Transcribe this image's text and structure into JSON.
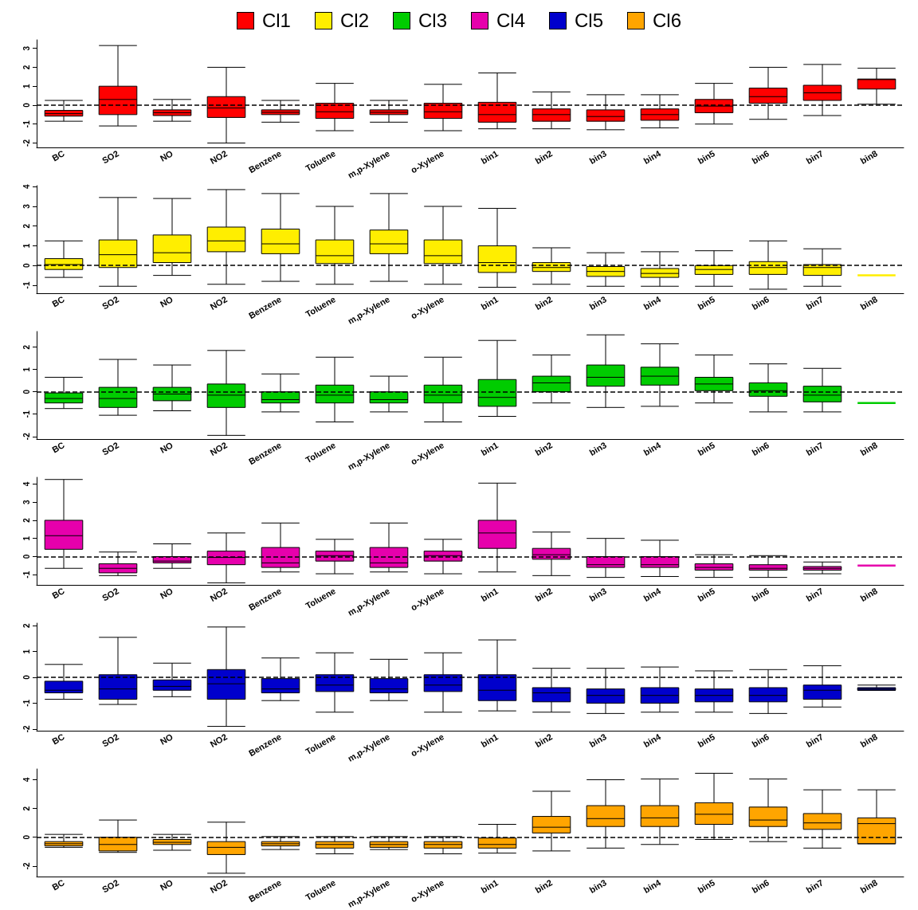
{
  "chart_data": [
    {
      "type": "box",
      "categories": [
        "BC",
        "SO2",
        "NO",
        "NO2",
        "Benzene",
        "Toluene",
        "m,p-Xylene",
        "o-Xylene",
        "bin1",
        "bin2",
        "bin3",
        "bin4",
        "bin5",
        "bin6",
        "bin7",
        "bin8"
      ],
      "ylim": [
        -2.25,
        3.45
      ],
      "yticks": [
        -2,
        -1,
        0,
        1,
        2,
        3
      ],
      "grid": false,
      "legend": "top",
      "ref_lines": [
        {
          "axis": "y",
          "value": 0,
          "line_style": "dashed"
        }
      ],
      "series": [
        {
          "name": "Cl1",
          "color": "#ff0000",
          "boxes": [
            {
              "low": -0.85,
              "q1": -0.58,
              "median": -0.45,
              "q3": -0.28,
              "high": 0.25
            },
            {
              "low": -1.1,
              "q1": -0.5,
              "median": 0.3,
              "q3": 1.0,
              "high": 3.15
            },
            {
              "low": -0.85,
              "q1": -0.55,
              "median": -0.4,
              "q3": -0.25,
              "high": 0.3
            },
            {
              "low": -2.0,
              "q1": -0.65,
              "median": -0.15,
              "q3": 0.45,
              "high": 2.0
            },
            {
              "low": -0.9,
              "q1": -0.5,
              "median": -0.38,
              "q3": -0.25,
              "high": 0.25
            },
            {
              "low": -1.35,
              "q1": -0.7,
              "median": -0.35,
              "q3": 0.1,
              "high": 1.15
            },
            {
              "low": -0.9,
              "q1": -0.5,
              "median": -0.38,
              "q3": -0.25,
              "high": 0.25
            },
            {
              "low": -1.35,
              "q1": -0.7,
              "median": -0.35,
              "q3": 0.1,
              "high": 1.1
            },
            {
              "low": -1.25,
              "q1": -0.9,
              "median": -0.5,
              "q3": 0.15,
              "high": 1.7
            },
            {
              "low": -1.25,
              "q1": -0.85,
              "median": -0.5,
              "q3": -0.2,
              "high": 0.7
            },
            {
              "low": -1.3,
              "q1": -0.85,
              "median": -0.6,
              "q3": -0.25,
              "high": 0.55
            },
            {
              "low": -1.2,
              "q1": -0.8,
              "median": -0.5,
              "q3": -0.2,
              "high": 0.55
            },
            {
              "low": -1.0,
              "q1": -0.4,
              "median": -0.05,
              "q3": 0.3,
              "high": 1.15
            },
            {
              "low": -0.75,
              "q1": 0.1,
              "median": 0.45,
              "q3": 0.9,
              "high": 2.0
            },
            {
              "low": -0.55,
              "q1": 0.25,
              "median": 0.65,
              "q3": 1.05,
              "high": 2.15
            },
            {
              "low": 0.05,
              "q1": 0.85,
              "median": 1.35,
              "q3": 1.38,
              "high": 1.95
            }
          ]
        }
      ]
    },
    {
      "type": "box",
      "categories": [
        "BC",
        "SO2",
        "NO",
        "NO2",
        "Benzene",
        "Toluene",
        "m,p-Xylene",
        "o-Xylene",
        "bin1",
        "bin2",
        "bin3",
        "bin4",
        "bin5",
        "bin6",
        "bin7",
        "bin8"
      ],
      "ylim": [
        -1.42,
        4.05
      ],
      "yticks": [
        -1,
        0,
        1,
        2,
        3,
        4
      ],
      "grid": false,
      "legend": "top",
      "ref_lines": [
        {
          "axis": "y",
          "value": 0,
          "line_style": "dashed"
        }
      ],
      "series": [
        {
          "name": "Cl2",
          "color": "#ffee00",
          "boxes": [
            {
              "low": -0.6,
              "q1": -0.2,
              "median": 0.05,
              "q3": 0.35,
              "high": 1.25
            },
            {
              "low": -1.05,
              "q1": -0.1,
              "median": 0.55,
              "q3": 1.3,
              "high": 3.45
            },
            {
              "low": -0.5,
              "q1": 0.15,
              "median": 0.65,
              "q3": 1.55,
              "high": 3.4
            },
            {
              "low": -0.95,
              "q1": 0.7,
              "median": 1.25,
              "q3": 1.95,
              "high": 3.85
            },
            {
              "low": -0.8,
              "q1": 0.6,
              "median": 1.1,
              "q3": 1.85,
              "high": 3.65
            },
            {
              "low": -0.95,
              "q1": 0.1,
              "median": 0.5,
              "q3": 1.3,
              "high": 3.0
            },
            {
              "low": -0.8,
              "q1": 0.6,
              "median": 1.1,
              "q3": 1.8,
              "high": 3.65
            },
            {
              "low": -0.95,
              "q1": 0.1,
              "median": 0.5,
              "q3": 1.3,
              "high": 3.0
            },
            {
              "low": -1.1,
              "q1": -0.35,
              "median": 0.15,
              "q3": 1.0,
              "high": 2.9
            },
            {
              "low": -0.95,
              "q1": -0.3,
              "median": -0.1,
              "q3": 0.15,
              "high": 0.9
            },
            {
              "low": -1.05,
              "q1": -0.55,
              "median": -0.3,
              "q3": -0.05,
              "high": 0.65
            },
            {
              "low": -1.05,
              "q1": -0.6,
              "median": -0.4,
              "q3": -0.15,
              "high": 0.7
            },
            {
              "low": -1.05,
              "q1": -0.45,
              "median": -0.2,
              "q3": 0.0,
              "high": 0.75
            },
            {
              "low": -1.2,
              "q1": -0.45,
              "median": -0.1,
              "q3": 0.2,
              "high": 1.25
            },
            {
              "low": -1.05,
              "q1": -0.5,
              "median": -0.1,
              "q3": 0.05,
              "high": 0.85
            },
            {
              "low": -0.5,
              "q1": -0.5,
              "median": -0.5,
              "q3": -0.5,
              "high": -0.5
            }
          ]
        }
      ]
    },
    {
      "type": "box",
      "categories": [
        "BC",
        "SO2",
        "NO",
        "NO2",
        "Benzene",
        "Toluene",
        "m,p-Xylene",
        "o-Xylene",
        "bin1",
        "bin2",
        "bin3",
        "bin4",
        "bin5",
        "bin6",
        "bin7",
        "bin8"
      ],
      "ylim": [
        -2.13,
        2.7
      ],
      "yticks": [
        -2,
        -1,
        0,
        1,
        2
      ],
      "grid": false,
      "legend": "top",
      "ref_lines": [
        {
          "axis": "y",
          "value": 0,
          "line_style": "dashed"
        }
      ],
      "series": [
        {
          "name": "Cl3",
          "color": "#00cc00",
          "boxes": [
            {
              "low": -0.75,
              "q1": -0.5,
              "median": -0.3,
              "q3": -0.05,
              "high": 0.65
            },
            {
              "low": -1.05,
              "q1": -0.7,
              "median": -0.3,
              "q3": 0.2,
              "high": 1.45
            },
            {
              "low": -0.85,
              "q1": -0.4,
              "median": -0.1,
              "q3": 0.2,
              "high": 1.2
            },
            {
              "low": -1.95,
              "q1": -0.7,
              "median": -0.15,
              "q3": 0.35,
              "high": 1.85
            },
            {
              "low": -0.9,
              "q1": -0.5,
              "median": -0.35,
              "q3": 0.0,
              "high": 0.8
            },
            {
              "low": -1.35,
              "q1": -0.5,
              "median": -0.15,
              "q3": 0.3,
              "high": 1.55
            },
            {
              "low": -0.9,
              "q1": -0.5,
              "median": -0.35,
              "q3": 0.0,
              "high": 0.7
            },
            {
              "low": -1.35,
              "q1": -0.5,
              "median": -0.15,
              "q3": 0.3,
              "high": 1.55
            },
            {
              "low": -1.1,
              "q1": -0.65,
              "median": -0.25,
              "q3": 0.55,
              "high": 2.3
            },
            {
              "low": -0.5,
              "q1": 0.0,
              "median": 0.4,
              "q3": 0.7,
              "high": 1.65
            },
            {
              "low": -0.7,
              "q1": 0.25,
              "median": 0.65,
              "q3": 1.2,
              "high": 2.55
            },
            {
              "low": -0.65,
              "q1": 0.3,
              "median": 0.7,
              "q3": 1.1,
              "high": 2.15
            },
            {
              "low": -0.5,
              "q1": 0.05,
              "median": 0.35,
              "q3": 0.65,
              "high": 1.65
            },
            {
              "low": -0.9,
              "q1": -0.2,
              "median": 0.05,
              "q3": 0.4,
              "high": 1.25
            },
            {
              "low": -0.9,
              "q1": -0.45,
              "median": -0.15,
              "q3": 0.25,
              "high": 1.05
            },
            {
              "low": -0.5,
              "q1": -0.5,
              "median": -0.5,
              "q3": -0.5,
              "high": -0.5
            }
          ]
        }
      ]
    },
    {
      "type": "box",
      "categories": [
        "BC",
        "SO2",
        "NO",
        "NO2",
        "Benzene",
        "Toluene",
        "m,p-Xylene",
        "o-Xylene",
        "bin1",
        "bin2",
        "bin3",
        "bin4",
        "bin5",
        "bin6",
        "bin7",
        "bin8"
      ],
      "ylim": [
        -1.58,
        4.37
      ],
      "yticks": [
        -1,
        0,
        1,
        2,
        3,
        4
      ],
      "grid": false,
      "legend": "top",
      "ref_lines": [
        {
          "axis": "y",
          "value": 0,
          "line_style": "dashed"
        }
      ],
      "series": [
        {
          "name": "Cl4",
          "color": "#e600ac",
          "boxes": [
            {
              "low": -0.65,
              "q1": 0.4,
              "median": 1.15,
              "q3": 2.0,
              "high": 4.25
            },
            {
              "low": -1.05,
              "q1": -0.9,
              "median": -0.65,
              "q3": -0.4,
              "high": 0.25
            },
            {
              "low": -0.65,
              "q1": -0.35,
              "median": -0.25,
              "q3": 0.0,
              "high": 0.7
            },
            {
              "low": -1.45,
              "q1": -0.45,
              "median": -0.05,
              "q3": 0.3,
              "high": 1.3
            },
            {
              "low": -0.85,
              "q1": -0.6,
              "median": -0.35,
              "q3": 0.5,
              "high": 1.85
            },
            {
              "low": -0.95,
              "q1": -0.25,
              "median": 0.05,
              "q3": 0.3,
              "high": 0.95
            },
            {
              "low": -0.85,
              "q1": -0.6,
              "median": -0.35,
              "q3": 0.5,
              "high": 1.85
            },
            {
              "low": -0.95,
              "q1": -0.25,
              "median": 0.05,
              "q3": 0.3,
              "high": 0.95
            },
            {
              "low": -0.85,
              "q1": 0.45,
              "median": 1.3,
              "q3": 2.0,
              "high": 4.05
            },
            {
              "low": -1.05,
              "q1": -0.15,
              "median": 0.1,
              "q3": 0.45,
              "high": 1.35
            },
            {
              "low": -1.15,
              "q1": -0.6,
              "median": -0.45,
              "q3": 0.0,
              "high": 1.0
            },
            {
              "low": -1.1,
              "q1": -0.6,
              "median": -0.45,
              "q3": 0.0,
              "high": 0.9
            },
            {
              "low": -1.15,
              "q1": -0.75,
              "median": -0.6,
              "q3": -0.4,
              "high": 0.1
            },
            {
              "low": -1.15,
              "q1": -0.75,
              "median": -0.65,
              "q3": -0.45,
              "high": 0.05
            },
            {
              "low": -0.95,
              "q1": -0.75,
              "median": -0.65,
              "q3": -0.55,
              "high": -0.3
            },
            {
              "low": -0.5,
              "q1": -0.5,
              "median": -0.5,
              "q3": -0.5,
              "high": -0.5
            }
          ]
        }
      ]
    },
    {
      "type": "box",
      "categories": [
        "BC",
        "SO2",
        "NO",
        "NO2",
        "Benzene",
        "Toluene",
        "m,p-Xylene",
        "o-Xylene",
        "bin1",
        "bin2",
        "bin3",
        "bin4",
        "bin5",
        "bin6",
        "bin7",
        "bin8"
      ],
      "ylim": [
        -2.08,
        2.1
      ],
      "yticks": [
        -2,
        -1,
        0,
        1,
        2
      ],
      "grid": false,
      "legend": "top",
      "ref_lines": [
        {
          "axis": "y",
          "value": 0,
          "line_style": "dashed"
        }
      ],
      "series": [
        {
          "name": "Cl5",
          "color": "#0000cc",
          "boxes": [
            {
              "low": -0.85,
              "q1": -0.6,
              "median": -0.5,
              "q3": -0.15,
              "high": 0.5
            },
            {
              "low": -1.05,
              "q1": -0.85,
              "median": -0.45,
              "q3": 0.1,
              "high": 1.55
            },
            {
              "low": -0.75,
              "q1": -0.5,
              "median": -0.35,
              "q3": -0.1,
              "high": 0.55
            },
            {
              "low": -1.9,
              "q1": -0.85,
              "median": -0.25,
              "q3": 0.3,
              "high": 1.95
            },
            {
              "low": -0.9,
              "q1": -0.6,
              "median": -0.45,
              "q3": -0.05,
              "high": 0.75
            },
            {
              "low": -1.35,
              "q1": -0.55,
              "median": -0.3,
              "q3": 0.1,
              "high": 0.95
            },
            {
              "low": -0.9,
              "q1": -0.6,
              "median": -0.45,
              "q3": -0.05,
              "high": 0.7
            },
            {
              "low": -1.35,
              "q1": -0.55,
              "median": -0.3,
              "q3": 0.1,
              "high": 0.95
            },
            {
              "low": -1.3,
              "q1": -0.9,
              "median": -0.5,
              "q3": 0.1,
              "high": 1.45
            },
            {
              "low": -1.35,
              "q1": -0.95,
              "median": -0.6,
              "q3": -0.4,
              "high": 0.35
            },
            {
              "low": -1.4,
              "q1": -1.0,
              "median": -0.7,
              "q3": -0.45,
              "high": 0.35
            },
            {
              "low": -1.35,
              "q1": -1.0,
              "median": -0.7,
              "q3": -0.4,
              "high": 0.4
            },
            {
              "low": -1.35,
              "q1": -0.95,
              "median": -0.7,
              "q3": -0.45,
              "high": 0.25
            },
            {
              "low": -1.4,
              "q1": -0.95,
              "median": -0.7,
              "q3": -0.4,
              "high": 0.3
            },
            {
              "low": -1.15,
              "q1": -0.85,
              "median": -0.5,
              "q3": -0.3,
              "high": 0.45
            },
            {
              "low": -0.5,
              "q1": -0.5,
              "median": -0.45,
              "q3": -0.4,
              "high": -0.3
            }
          ]
        }
      ]
    },
    {
      "type": "box",
      "categories": [
        "BC",
        "SO2",
        "NO",
        "NO2",
        "Benzene",
        "Toluene",
        "m,p-Xylene",
        "o-Xylene",
        "bin1",
        "bin2",
        "bin3",
        "bin4",
        "bin5",
        "bin6",
        "bin7",
        "bin8"
      ],
      "ylim": [
        -2.75,
        4.75
      ],
      "yticks": [
        -2,
        0,
        2,
        4
      ],
      "grid": false,
      "legend": "top",
      "ref_lines": [
        {
          "axis": "y",
          "value": 0,
          "line_style": "dashed"
        }
      ],
      "series": [
        {
          "name": "Cl6",
          "color": "#ffa500",
          "boxes": [
            {
              "low": -0.7,
              "q1": -0.6,
              "median": -0.45,
              "q3": -0.3,
              "high": 0.2
            },
            {
              "low": -1.05,
              "q1": -0.95,
              "median": -0.5,
              "q3": 0.0,
              "high": 1.2
            },
            {
              "low": -0.9,
              "q1": -0.5,
              "median": -0.35,
              "q3": -0.15,
              "high": 0.2
            },
            {
              "low": -2.5,
              "q1": -1.2,
              "median": -0.7,
              "q3": -0.3,
              "high": 1.05
            },
            {
              "low": -0.85,
              "q1": -0.6,
              "median": -0.45,
              "q3": -0.3,
              "high": 0.05
            },
            {
              "low": -1.15,
              "q1": -0.75,
              "median": -0.5,
              "q3": -0.3,
              "high": 0.05
            },
            {
              "low": -0.85,
              "q1": -0.7,
              "median": -0.5,
              "q3": -0.3,
              "high": 0.05
            },
            {
              "low": -1.15,
              "q1": -0.75,
              "median": -0.5,
              "q3": -0.3,
              "high": 0.05
            },
            {
              "low": -1.1,
              "q1": -0.75,
              "median": -0.5,
              "q3": -0.05,
              "high": 0.9
            },
            {
              "low": -0.95,
              "q1": 0.3,
              "median": 0.7,
              "q3": 1.45,
              "high": 3.2
            },
            {
              "low": -0.75,
              "q1": 0.75,
              "median": 1.3,
              "q3": 2.2,
              "high": 4.0
            },
            {
              "low": -0.5,
              "q1": 0.75,
              "median": 1.35,
              "q3": 2.2,
              "high": 4.05
            },
            {
              "low": -0.15,
              "q1": 0.9,
              "median": 1.6,
              "q3": 2.4,
              "high": 4.45
            },
            {
              "low": -0.3,
              "q1": 0.75,
              "median": 1.2,
              "q3": 2.1,
              "high": 4.05
            },
            {
              "low": -0.75,
              "q1": 0.55,
              "median": 1.0,
              "q3": 1.65,
              "high": 3.3
            },
            {
              "low": -0.45,
              "q1": -0.45,
              "median": 0.95,
              "q3": 1.35,
              "high": 3.3
            }
          ]
        }
      ]
    }
  ]
}
